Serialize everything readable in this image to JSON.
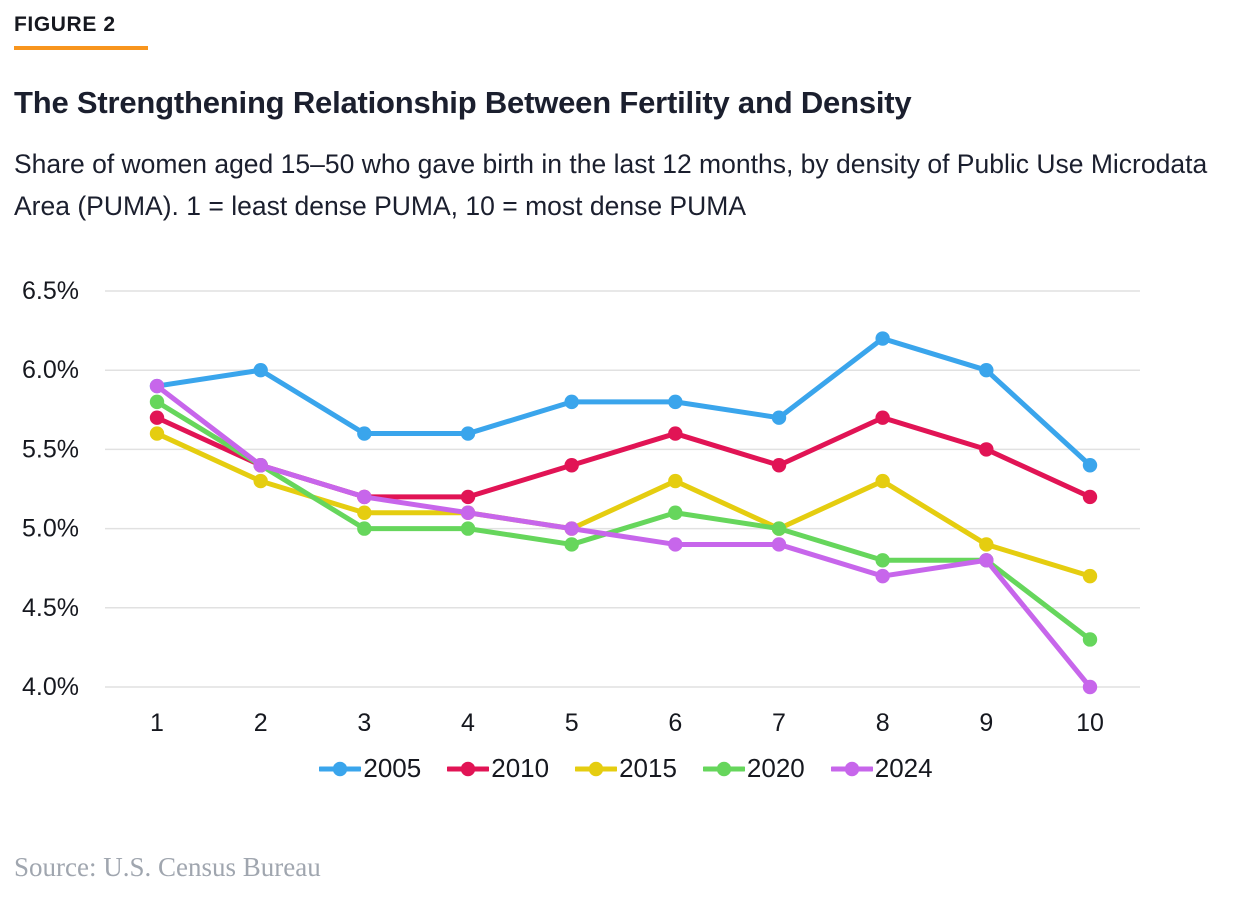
{
  "figure_label": "FIGURE 2",
  "title": "The Strengthening Relationship Between Fertility and Density",
  "subtitle": "Share of women aged 15–50 who gave birth in the last 12 months, by density of Public Use Microdata Area (PUMA). 1 = least dense PUMA, 10 = most dense PUMA",
  "source": "Source: U.S. Census Bureau",
  "colors": {
    "accent_orange": "#f8951d",
    "text_dark": "#1b1f2e",
    "axis_text": "#16181f",
    "grid": "#e1e1e1",
    "source_gray": "#a0a6af"
  },
  "chart_data": {
    "type": "line",
    "title": "",
    "xlabel": "",
    "ylabel": "",
    "categories": [
      "1",
      "2",
      "3",
      "4",
      "5",
      "6",
      "7",
      "8",
      "9",
      "10"
    ],
    "ylim": [
      4.0,
      6.5
    ],
    "ytick_step": 0.5,
    "yticks": [
      "6.5%",
      "6.0%",
      "5.5%",
      "5.0%",
      "4.5%",
      "4.0%"
    ],
    "grid": "horizontal",
    "legend_position": "bottom",
    "series": [
      {
        "name": "2005",
        "color": "#3aa5ec",
        "values": [
          5.9,
          6.0,
          5.6,
          5.6,
          5.8,
          5.8,
          5.7,
          6.2,
          6.0,
          5.4
        ]
      },
      {
        "name": "2010",
        "color": "#e11455",
        "values": [
          5.7,
          5.4,
          5.2,
          5.2,
          5.4,
          5.6,
          5.4,
          5.7,
          5.5,
          5.2
        ]
      },
      {
        "name": "2015",
        "color": "#e5cd10",
        "values": [
          5.6,
          5.3,
          5.1,
          5.1,
          5.0,
          5.3,
          5.0,
          5.3,
          4.9,
          4.7
        ]
      },
      {
        "name": "2020",
        "color": "#66d65c",
        "values": [
          5.8,
          5.4,
          5.0,
          5.0,
          4.9,
          5.1,
          5.0,
          4.8,
          4.8,
          4.3
        ]
      },
      {
        "name": "2024",
        "color": "#c766eb",
        "values": [
          5.9,
          5.4,
          5.2,
          5.1,
          5.0,
          4.9,
          4.9,
          4.7,
          4.8,
          4.0
        ]
      }
    ]
  }
}
